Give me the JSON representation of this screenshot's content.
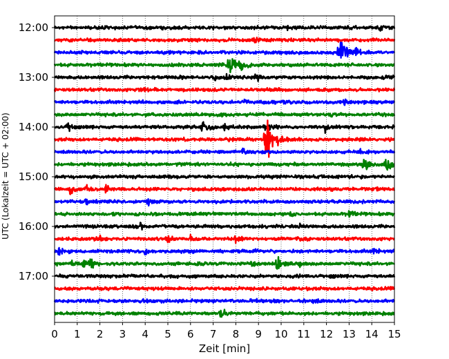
{
  "chart_data": {
    "type": "line",
    "title": "",
    "xlabel": "Zeit  [min]",
    "ylabel": "UTC (Lokalzeit = UTC + 02:00)",
    "xlim": [
      0,
      15
    ],
    "x_ticks": [
      0,
      1,
      2,
      3,
      4,
      5,
      6,
      7,
      8,
      9,
      10,
      11,
      12,
      13,
      14,
      15
    ],
    "y_tick_labels": [
      "12:00",
      "13:00",
      "14:00",
      "15:00",
      "16:00",
      "17:00"
    ],
    "trace_interval_minutes": 15,
    "start_time": "12:00",
    "end_time": "17:45",
    "grid": "vertical-dotted",
    "legend": "none",
    "colors_cycle": [
      "#000000",
      "#ff0000",
      "#0000ff",
      "#008000"
    ],
    "traces": [
      {
        "start": "12:00",
        "color": "#000000",
        "events": [
          {
            "t": 10.3,
            "a": 4
          },
          {
            "t": 14.2,
            "a": 4
          },
          {
            "t": 14.4,
            "a": 5
          }
        ]
      },
      {
        "start": "12:15",
        "color": "#ff0000",
        "events": [
          {
            "t": 2.7,
            "a": 4
          },
          {
            "t": 8.8,
            "a": 3
          }
        ]
      },
      {
        "start": "12:30",
        "color": "#0000ff",
        "events": [
          {
            "t": 12.5,
            "a": 8
          },
          {
            "t": 12.65,
            "a": 28
          },
          {
            "t": 13.3,
            "a": 7
          }
        ]
      },
      {
        "start": "12:45",
        "color": "#008000",
        "events": [
          {
            "t": 7.75,
            "a": 28
          },
          {
            "t": 8.2,
            "a": 9
          }
        ]
      },
      {
        "start": "13:00",
        "color": "#000000",
        "events": [
          {
            "t": 7.1,
            "a": 7
          },
          {
            "t": 7.6,
            "a": 6
          },
          {
            "t": 8.9,
            "a": 9
          }
        ]
      },
      {
        "start": "13:15",
        "color": "#ff0000",
        "events": [
          {
            "t": 3.7,
            "a": 5
          }
        ]
      },
      {
        "start": "13:30",
        "color": "#0000ff",
        "events": [
          {
            "t": 8.4,
            "a": 5
          },
          {
            "t": 9.4,
            "a": 5
          },
          {
            "t": 12.8,
            "a": 6
          }
        ]
      },
      {
        "start": "13:45",
        "color": "#008000",
        "events": [
          {
            "t": 7.4,
            "a": 4
          },
          {
            "t": 12.2,
            "a": 6
          }
        ]
      },
      {
        "start": "14:00",
        "color": "#000000",
        "events": [
          {
            "t": 0.6,
            "a": 10
          },
          {
            "t": 6.55,
            "a": 13
          },
          {
            "t": 7.5,
            "a": 6
          },
          {
            "t": 9.2,
            "a": 5
          },
          {
            "t": 9.5,
            "a": 9
          },
          {
            "t": 11.95,
            "a": 7
          }
        ]
      },
      {
        "start": "14:15",
        "color": "#ff0000",
        "events": [
          {
            "t": 9.3,
            "a": 14
          },
          {
            "t": 9.4,
            "a": 34
          }
        ]
      },
      {
        "start": "14:30",
        "color": "#0000ff",
        "events": [
          {
            "t": 8.3,
            "a": 5
          },
          {
            "t": 13.5,
            "a": 5
          }
        ]
      },
      {
        "start": "14:45",
        "color": "#008000",
        "events": [
          {
            "t": 13.65,
            "a": 12
          },
          {
            "t": 14.65,
            "a": 14
          }
        ]
      },
      {
        "start": "15:00",
        "color": "#000000",
        "events": [
          {
            "t": 1.7,
            "a": 4
          }
        ]
      },
      {
        "start": "15:15",
        "color": "#ff0000",
        "events": [
          {
            "t": 0.7,
            "a": 9
          },
          {
            "t": 1.4,
            "a": 7
          },
          {
            "t": 2.2,
            "a": 11
          },
          {
            "t": 14.2,
            "a": 4
          }
        ]
      },
      {
        "start": "15:30",
        "color": "#0000ff",
        "events": [
          {
            "t": 1.4,
            "a": 5
          },
          {
            "t": 4.1,
            "a": 6
          }
        ]
      },
      {
        "start": "15:45",
        "color": "#008000",
        "events": [
          {
            "t": 10.4,
            "a": 6
          },
          {
            "t": 13.0,
            "a": 7
          }
        ]
      },
      {
        "start": "16:00",
        "color": "#000000",
        "events": [
          {
            "t": 3.8,
            "a": 6
          },
          {
            "t": 9.8,
            "a": 4
          },
          {
            "t": 10.8,
            "a": 6
          }
        ]
      },
      {
        "start": "16:15",
        "color": "#ff0000",
        "events": [
          {
            "t": 2.0,
            "a": 6
          },
          {
            "t": 5.0,
            "a": 8
          },
          {
            "t": 6.0,
            "a": 5
          },
          {
            "t": 8.0,
            "a": 7
          }
        ]
      },
      {
        "start": "16:30",
        "color": "#0000ff",
        "events": [
          {
            "t": 0.2,
            "a": 5
          },
          {
            "t": 4.0,
            "a": 6
          },
          {
            "t": 8.9,
            "a": 4
          },
          {
            "t": 14.1,
            "a": 6
          }
        ]
      },
      {
        "start": "16:45",
        "color": "#008000",
        "events": [
          {
            "t": 0.7,
            "a": 6
          },
          {
            "t": 1.3,
            "a": 11
          },
          {
            "t": 1.6,
            "a": 6
          },
          {
            "t": 8.7,
            "a": 5
          },
          {
            "t": 9.8,
            "a": 13
          },
          {
            "t": 10.8,
            "a": 5
          }
        ]
      },
      {
        "start": "17:00",
        "color": "#000000",
        "events": [
          {
            "t": 12.2,
            "a": 3
          }
        ]
      },
      {
        "start": "17:15",
        "color": "#ff0000",
        "events": [
          {
            "t": 7.1,
            "a": 4
          }
        ]
      },
      {
        "start": "17:30",
        "color": "#0000ff",
        "events": [
          {
            "t": 8.7,
            "a": 4
          },
          {
            "t": 11.4,
            "a": 6
          }
        ]
      },
      {
        "start": "17:45",
        "color": "#008000",
        "events": [
          {
            "t": 7.35,
            "a": 11
          }
        ]
      }
    ]
  }
}
